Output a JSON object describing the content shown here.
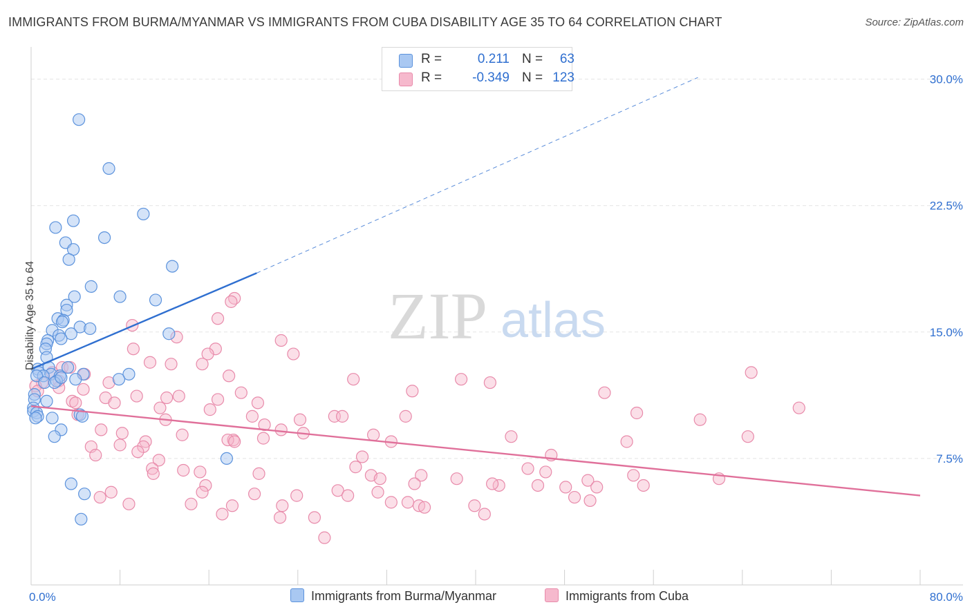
{
  "title": "IMMIGRANTS FROM BURMA/MYANMAR VS IMMIGRANTS FROM CUBA DISABILITY AGE 35 TO 64 CORRELATION CHART",
  "source": "Source: ZipAtlas.com",
  "watermark": {
    "zip": "ZIP",
    "atlas": "atlas"
  },
  "legend": {
    "r_label": "R =",
    "n_label": "N =",
    "burma": {
      "r": "0.211",
      "n": "63"
    },
    "cuba": {
      "r": "-0.349",
      "n": "123"
    }
  },
  "colors": {
    "burma_fill": "#a9c8f2",
    "burma_stroke": "#5b92dc",
    "burma_line": "#2f6fd0",
    "cuba_fill": "#f6b9cd",
    "cuba_stroke": "#e88aaa",
    "cuba_line": "#e0709a",
    "grid": "#e3e3e3",
    "axis_text": "#2f6fd0"
  },
  "chart_data": {
    "type": "scatter",
    "xlabel": "",
    "ylabel": "Disability Age 35 to 64",
    "xlim": [
      0,
      80
    ],
    "ylim": [
      0,
      31.5
    ],
    "x_tick_labels": [
      {
        "value": 0,
        "label": "0.0%"
      },
      {
        "value": 80,
        "label": "80.0%"
      }
    ],
    "y_tick_labels": [
      {
        "value": 7.5,
        "label": "7.5%"
      },
      {
        "value": 15,
        "label": "15.0%"
      },
      {
        "value": 22.5,
        "label": "22.5%"
      },
      {
        "value": 30,
        "label": "30.0%"
      }
    ],
    "grid": true,
    "legend_position": "top-center",
    "series": [
      {
        "name": "Immigrants from Burma/Myanmar",
        "trend": {
          "x0": 0,
          "y0": 12.8,
          "x1": 20.3,
          "y1": 18.5,
          "dash_to_x": 60,
          "dash_to_y": 30.1
        },
        "points": [
          [
            4.3,
            27.6
          ],
          [
            7.0,
            24.7
          ],
          [
            10.1,
            22.0
          ],
          [
            3.8,
            21.6
          ],
          [
            2.2,
            21.2
          ],
          [
            6.6,
            20.6
          ],
          [
            3.1,
            20.3
          ],
          [
            3.8,
            19.9
          ],
          [
            3.4,
            19.3
          ],
          [
            12.7,
            18.9
          ],
          [
            5.4,
            17.7
          ],
          [
            3.9,
            17.1
          ],
          [
            8.0,
            17.1
          ],
          [
            11.2,
            16.9
          ],
          [
            3.2,
            16.6
          ],
          [
            3.2,
            16.3
          ],
          [
            2.4,
            15.8
          ],
          [
            2.9,
            15.7
          ],
          [
            2.8,
            15.6
          ],
          [
            4.4,
            15.3
          ],
          [
            5.3,
            15.2
          ],
          [
            1.9,
            15.1
          ],
          [
            3.6,
            14.9
          ],
          [
            12.4,
            14.9
          ],
          [
            2.5,
            14.8
          ],
          [
            2.7,
            14.6
          ],
          [
            1.5,
            14.5
          ],
          [
            1.4,
            14.3
          ],
          [
            1.3,
            14.0
          ],
          [
            1.4,
            13.5
          ],
          [
            0.6,
            12.8
          ],
          [
            1.6,
            12.9
          ],
          [
            3.3,
            12.9
          ],
          [
            0.7,
            12.6
          ],
          [
            1.8,
            12.5
          ],
          [
            4.7,
            12.5
          ],
          [
            1.1,
            12.4
          ],
          [
            2.6,
            12.4
          ],
          [
            8.8,
            12.5
          ],
          [
            0.5,
            12.4
          ],
          [
            2.3,
            12.1
          ],
          [
            1.2,
            12.0
          ],
          [
            2.1,
            12.0
          ],
          [
            4.0,
            12.2
          ],
          [
            7.9,
            12.2
          ],
          [
            2.7,
            12.3
          ],
          [
            0.3,
            11.3
          ],
          [
            0.3,
            11.0
          ],
          [
            1.4,
            10.9
          ],
          [
            0.2,
            10.5
          ],
          [
            0.2,
            10.3
          ],
          [
            0.5,
            10.2
          ],
          [
            0.6,
            10.0
          ],
          [
            0.4,
            9.9
          ],
          [
            4.4,
            10.1
          ],
          [
            4.6,
            10.0
          ],
          [
            1.9,
            9.9
          ],
          [
            2.7,
            9.2
          ],
          [
            2.1,
            8.8
          ],
          [
            17.6,
            7.5
          ],
          [
            3.6,
            6.0
          ],
          [
            4.8,
            5.4
          ],
          [
            4.5,
            3.9
          ]
        ]
      },
      {
        "name": "Immigrants from Cuba",
        "trend": {
          "x0": 0,
          "y0": 10.6,
          "x1": 80,
          "y1": 5.3
        },
        "points": [
          [
            18.3,
            17.0
          ],
          [
            18.0,
            16.8
          ],
          [
            16.8,
            15.8
          ],
          [
            9.1,
            15.4
          ],
          [
            13.1,
            14.7
          ],
          [
            22.5,
            14.5
          ],
          [
            9.2,
            14.0
          ],
          [
            16.6,
            14.0
          ],
          [
            23.6,
            13.7
          ],
          [
            15.9,
            13.7
          ],
          [
            10.7,
            13.2
          ],
          [
            12.6,
            13.1
          ],
          [
            15.4,
            13.1
          ],
          [
            2.8,
            12.9
          ],
          [
            3.5,
            12.9
          ],
          [
            1.9,
            12.6
          ],
          [
            4.8,
            12.5
          ],
          [
            17.8,
            12.4
          ],
          [
            2.5,
            12.1
          ],
          [
            29.0,
            12.2
          ],
          [
            38.7,
            12.2
          ],
          [
            41.3,
            12.0
          ],
          [
            64.8,
            12.6
          ],
          [
            7.0,
            12.0
          ],
          [
            1.0,
            12.0
          ],
          [
            0.4,
            11.8
          ],
          [
            2.5,
            11.7
          ],
          [
            4.7,
            11.6
          ],
          [
            0.6,
            11.5
          ],
          [
            34.3,
            11.5
          ],
          [
            51.6,
            11.4
          ],
          [
            18.9,
            11.4
          ],
          [
            9.5,
            11.2
          ],
          [
            13.3,
            11.2
          ],
          [
            12.2,
            11.1
          ],
          [
            6.7,
            11.1
          ],
          [
            16.8,
            11.0
          ],
          [
            3.7,
            10.9
          ],
          [
            4.0,
            10.8
          ],
          [
            7.5,
            10.8
          ],
          [
            20.4,
            10.8
          ],
          [
            11.6,
            10.5
          ],
          [
            16.1,
            10.4
          ],
          [
            69.1,
            10.5
          ],
          [
            54.5,
            10.2
          ],
          [
            4.2,
            10.1
          ],
          [
            19.9,
            10.0
          ],
          [
            27.3,
            10.0
          ],
          [
            33.7,
            10.0
          ],
          [
            28.0,
            10.0
          ],
          [
            12.1,
            9.8
          ],
          [
            24.2,
            9.8
          ],
          [
            60.2,
            9.8
          ],
          [
            21.0,
            9.5
          ],
          [
            22.5,
            9.2
          ],
          [
            6.3,
            9.2
          ],
          [
            24.5,
            9.0
          ],
          [
            8.2,
            9.0
          ],
          [
            30.8,
            8.9
          ],
          [
            13.6,
            8.9
          ],
          [
            20.9,
            8.7
          ],
          [
            43.2,
            8.8
          ],
          [
            18.2,
            8.6
          ],
          [
            17.7,
            8.6
          ],
          [
            18.3,
            8.5
          ],
          [
            32.4,
            8.5
          ],
          [
            53.6,
            8.5
          ],
          [
            10.3,
            8.5
          ],
          [
            64.5,
            8.8
          ],
          [
            8.0,
            8.3
          ],
          [
            10.1,
            8.2
          ],
          [
            5.4,
            8.2
          ],
          [
            5.8,
            7.7
          ],
          [
            9.6,
            7.9
          ],
          [
            29.8,
            7.6
          ],
          [
            46.8,
            7.7
          ],
          [
            11.5,
            7.4
          ],
          [
            29.2,
            7.0
          ],
          [
            44.7,
            6.9
          ],
          [
            10.9,
            6.9
          ],
          [
            13.7,
            6.8
          ],
          [
            15.2,
            6.7
          ],
          [
            11.0,
            6.6
          ],
          [
            20.5,
            6.6
          ],
          [
            30.6,
            6.5
          ],
          [
            35.1,
            6.5
          ],
          [
            31.4,
            6.3
          ],
          [
            38.3,
            6.3
          ],
          [
            54.2,
            6.5
          ],
          [
            46.3,
            6.7
          ],
          [
            61.9,
            6.3
          ],
          [
            50.1,
            6.2
          ],
          [
            15.7,
            5.9
          ],
          [
            55.1,
            5.9
          ],
          [
            45.6,
            5.9
          ],
          [
            48.1,
            5.8
          ],
          [
            42.1,
            5.9
          ],
          [
            41.5,
            6.0
          ],
          [
            34.5,
            6.0
          ],
          [
            50.9,
            5.8
          ],
          [
            27.6,
            5.6
          ],
          [
            15.4,
            5.5
          ],
          [
            7.2,
            5.5
          ],
          [
            31.2,
            5.5
          ],
          [
            20.1,
            5.4
          ],
          [
            28.5,
            5.3
          ],
          [
            23.9,
            5.3
          ],
          [
            6.2,
            5.2
          ],
          [
            48.9,
            5.2
          ],
          [
            32.4,
            4.9
          ],
          [
            50.3,
            5.0
          ],
          [
            33.9,
            4.9
          ],
          [
            8.8,
            4.8
          ],
          [
            14.4,
            4.8
          ],
          [
            18.1,
            4.7
          ],
          [
            22.6,
            4.7
          ],
          [
            34.9,
            4.7
          ],
          [
            39.9,
            4.7
          ],
          [
            35.4,
            4.6
          ],
          [
            17.2,
            4.2
          ],
          [
            40.8,
            4.2
          ],
          [
            22.4,
            4.0
          ],
          [
            25.5,
            4.0
          ],
          [
            26.4,
            2.8
          ]
        ]
      }
    ]
  },
  "bottom_legend": [
    {
      "label": "Immigrants from Burma/Myanmar"
    },
    {
      "label": "Immigrants from Cuba"
    }
  ]
}
